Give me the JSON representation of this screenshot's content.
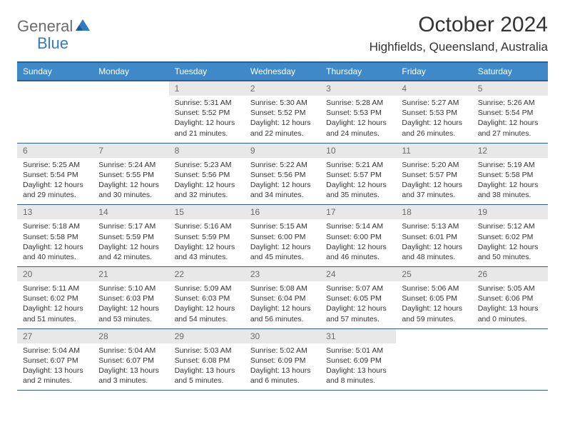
{
  "logo": {
    "text1": "General",
    "text2": "Blue"
  },
  "title": "October 2024",
  "location": "Highfields, Queensland, Australia",
  "colors": {
    "header_bg": "#3f89c9",
    "header_border": "#2b5f8f",
    "daynum_bg": "#e8e8e8",
    "text": "#333333",
    "logo_gray": "#6b6b6b",
    "logo_blue": "#2f7bc4"
  },
  "day_names": [
    "Sunday",
    "Monday",
    "Tuesday",
    "Wednesday",
    "Thursday",
    "Friday",
    "Saturday"
  ],
  "weeks": [
    [
      null,
      null,
      {
        "n": "1",
        "sr": "Sunrise: 5:31 AM",
        "ss": "Sunset: 5:52 PM",
        "d1": "Daylight: 12 hours",
        "d2": "and 21 minutes."
      },
      {
        "n": "2",
        "sr": "Sunrise: 5:30 AM",
        "ss": "Sunset: 5:52 PM",
        "d1": "Daylight: 12 hours",
        "d2": "and 22 minutes."
      },
      {
        "n": "3",
        "sr": "Sunrise: 5:28 AM",
        "ss": "Sunset: 5:53 PM",
        "d1": "Daylight: 12 hours",
        "d2": "and 24 minutes."
      },
      {
        "n": "4",
        "sr": "Sunrise: 5:27 AM",
        "ss": "Sunset: 5:53 PM",
        "d1": "Daylight: 12 hours",
        "d2": "and 26 minutes."
      },
      {
        "n": "5",
        "sr": "Sunrise: 5:26 AM",
        "ss": "Sunset: 5:54 PM",
        "d1": "Daylight: 12 hours",
        "d2": "and 27 minutes."
      }
    ],
    [
      {
        "n": "6",
        "sr": "Sunrise: 5:25 AM",
        "ss": "Sunset: 5:54 PM",
        "d1": "Daylight: 12 hours",
        "d2": "and 29 minutes."
      },
      {
        "n": "7",
        "sr": "Sunrise: 5:24 AM",
        "ss": "Sunset: 5:55 PM",
        "d1": "Daylight: 12 hours",
        "d2": "and 30 minutes."
      },
      {
        "n": "8",
        "sr": "Sunrise: 5:23 AM",
        "ss": "Sunset: 5:56 PM",
        "d1": "Daylight: 12 hours",
        "d2": "and 32 minutes."
      },
      {
        "n": "9",
        "sr": "Sunrise: 5:22 AM",
        "ss": "Sunset: 5:56 PM",
        "d1": "Daylight: 12 hours",
        "d2": "and 34 minutes."
      },
      {
        "n": "10",
        "sr": "Sunrise: 5:21 AM",
        "ss": "Sunset: 5:57 PM",
        "d1": "Daylight: 12 hours",
        "d2": "and 35 minutes."
      },
      {
        "n": "11",
        "sr": "Sunrise: 5:20 AM",
        "ss": "Sunset: 5:57 PM",
        "d1": "Daylight: 12 hours",
        "d2": "and 37 minutes."
      },
      {
        "n": "12",
        "sr": "Sunrise: 5:19 AM",
        "ss": "Sunset: 5:58 PM",
        "d1": "Daylight: 12 hours",
        "d2": "and 38 minutes."
      }
    ],
    [
      {
        "n": "13",
        "sr": "Sunrise: 5:18 AM",
        "ss": "Sunset: 5:58 PM",
        "d1": "Daylight: 12 hours",
        "d2": "and 40 minutes."
      },
      {
        "n": "14",
        "sr": "Sunrise: 5:17 AM",
        "ss": "Sunset: 5:59 PM",
        "d1": "Daylight: 12 hours",
        "d2": "and 42 minutes."
      },
      {
        "n": "15",
        "sr": "Sunrise: 5:16 AM",
        "ss": "Sunset: 5:59 PM",
        "d1": "Daylight: 12 hours",
        "d2": "and 43 minutes."
      },
      {
        "n": "16",
        "sr": "Sunrise: 5:15 AM",
        "ss": "Sunset: 6:00 PM",
        "d1": "Daylight: 12 hours",
        "d2": "and 45 minutes."
      },
      {
        "n": "17",
        "sr": "Sunrise: 5:14 AM",
        "ss": "Sunset: 6:00 PM",
        "d1": "Daylight: 12 hours",
        "d2": "and 46 minutes."
      },
      {
        "n": "18",
        "sr": "Sunrise: 5:13 AM",
        "ss": "Sunset: 6:01 PM",
        "d1": "Daylight: 12 hours",
        "d2": "and 48 minutes."
      },
      {
        "n": "19",
        "sr": "Sunrise: 5:12 AM",
        "ss": "Sunset: 6:02 PM",
        "d1": "Daylight: 12 hours",
        "d2": "and 50 minutes."
      }
    ],
    [
      {
        "n": "20",
        "sr": "Sunrise: 5:11 AM",
        "ss": "Sunset: 6:02 PM",
        "d1": "Daylight: 12 hours",
        "d2": "and 51 minutes."
      },
      {
        "n": "21",
        "sr": "Sunrise: 5:10 AM",
        "ss": "Sunset: 6:03 PM",
        "d1": "Daylight: 12 hours",
        "d2": "and 53 minutes."
      },
      {
        "n": "22",
        "sr": "Sunrise: 5:09 AM",
        "ss": "Sunset: 6:03 PM",
        "d1": "Daylight: 12 hours",
        "d2": "and 54 minutes."
      },
      {
        "n": "23",
        "sr": "Sunrise: 5:08 AM",
        "ss": "Sunset: 6:04 PM",
        "d1": "Daylight: 12 hours",
        "d2": "and 56 minutes."
      },
      {
        "n": "24",
        "sr": "Sunrise: 5:07 AM",
        "ss": "Sunset: 6:05 PM",
        "d1": "Daylight: 12 hours",
        "d2": "and 57 minutes."
      },
      {
        "n": "25",
        "sr": "Sunrise: 5:06 AM",
        "ss": "Sunset: 6:05 PM",
        "d1": "Daylight: 12 hours",
        "d2": "and 59 minutes."
      },
      {
        "n": "26",
        "sr": "Sunrise: 5:05 AM",
        "ss": "Sunset: 6:06 PM",
        "d1": "Daylight: 13 hours",
        "d2": "and 0 minutes."
      }
    ],
    [
      {
        "n": "27",
        "sr": "Sunrise: 5:04 AM",
        "ss": "Sunset: 6:07 PM",
        "d1": "Daylight: 13 hours",
        "d2": "and 2 minutes."
      },
      {
        "n": "28",
        "sr": "Sunrise: 5:04 AM",
        "ss": "Sunset: 6:07 PM",
        "d1": "Daylight: 13 hours",
        "d2": "and 3 minutes."
      },
      {
        "n": "29",
        "sr": "Sunrise: 5:03 AM",
        "ss": "Sunset: 6:08 PM",
        "d1": "Daylight: 13 hours",
        "d2": "and 5 minutes."
      },
      {
        "n": "30",
        "sr": "Sunrise: 5:02 AM",
        "ss": "Sunset: 6:09 PM",
        "d1": "Daylight: 13 hours",
        "d2": "and 6 minutes."
      },
      {
        "n": "31",
        "sr": "Sunrise: 5:01 AM",
        "ss": "Sunset: 6:09 PM",
        "d1": "Daylight: 13 hours",
        "d2": "and 8 minutes."
      },
      null,
      null
    ]
  ]
}
